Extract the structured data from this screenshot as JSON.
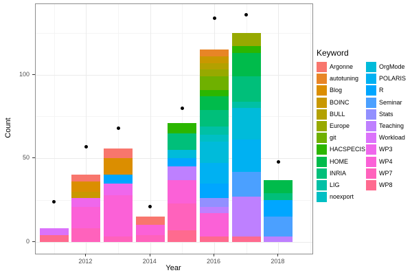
{
  "chart_data": {
    "type": "bar",
    "stacked": true,
    "title": "",
    "xlabel": "Year",
    "ylabel": "Count",
    "legend_title": "Keyword",
    "x": [
      2011,
      2012,
      2013,
      2014,
      2015,
      2016,
      2017,
      2018
    ],
    "x_ticks": [
      2012,
      2014,
      2016,
      2018
    ],
    "x_minor": [
      2011,
      2013,
      2015,
      2017,
      2019
    ],
    "y_ticks": [
      0,
      50,
      100
    ],
    "y_minor": [
      25,
      75,
      125
    ],
    "ylim": [
      -7,
      143
    ],
    "grid": true,
    "legend_position": "right",
    "bar_totals": [
      8,
      40,
      56,
      15,
      71,
      115,
      125,
      37
    ],
    "series": [
      {
        "name": "Argonne",
        "color": "#F8766D",
        "values": [
          0,
          4,
          6,
          5,
          0,
          0,
          0,
          0
        ]
      },
      {
        "name": "autotuning",
        "color": "#E88526",
        "values": [
          0,
          0,
          0,
          0,
          0,
          4,
          0,
          0
        ]
      },
      {
        "name": "Blog",
        "color": "#DB8E00",
        "values": [
          0,
          6,
          10,
          0,
          0,
          0,
          0,
          0
        ]
      },
      {
        "name": "BOINC",
        "color": "#C99800",
        "values": [
          0,
          4,
          0,
          0,
          0,
          4,
          0,
          0
        ]
      },
      {
        "name": "BULL",
        "color": "#B3A100",
        "values": [
          0,
          0,
          0,
          0,
          0,
          4,
          0,
          0
        ]
      },
      {
        "name": "Europe",
        "color": "#97A900",
        "values": [
          0,
          0,
          0,
          0,
          0,
          4,
          8,
          0
        ]
      },
      {
        "name": "git",
        "color": "#6FB000",
        "values": [
          0,
          0,
          0,
          0,
          0,
          8,
          0,
          0
        ]
      },
      {
        "name": "HACSPECIS",
        "color": "#2BB600",
        "values": [
          0,
          0,
          0,
          0,
          6,
          4,
          4,
          0
        ]
      },
      {
        "name": "HOME",
        "color": "#00BB4B",
        "values": [
          0,
          0,
          0,
          0,
          0,
          8,
          14,
          8
        ]
      },
      {
        "name": "INRIA",
        "color": "#00BF7A",
        "values": [
          0,
          0,
          0,
          0,
          10,
          10,
          15,
          4
        ]
      },
      {
        "name": "LIG",
        "color": "#00C0A5",
        "values": [
          0,
          0,
          0,
          0,
          0,
          5,
          4,
          0
        ]
      },
      {
        "name": "noexport",
        "color": "#00BFC4",
        "values": [
          0,
          0,
          0,
          0,
          0,
          4,
          0,
          0
        ]
      },
      {
        "name": "OrgMode",
        "color": "#00BBDA",
        "values": [
          0,
          0,
          0,
          0,
          5,
          13,
          19,
          0
        ]
      },
      {
        "name": "POLARIS",
        "color": "#00B1F2",
        "values": [
          0,
          0,
          0,
          0,
          0,
          12,
          19,
          0
        ]
      },
      {
        "name": "R",
        "color": "#00A6FF",
        "values": [
          0,
          0,
          5,
          0,
          5,
          9,
          0,
          10
        ]
      },
      {
        "name": "Seminar",
        "color": "#4BA0FF",
        "values": [
          0,
          0,
          0,
          0,
          0,
          0,
          15,
          12
        ]
      },
      {
        "name": "Stats",
        "color": "#9290FF",
        "values": [
          0,
          0,
          0,
          0,
          0,
          5,
          0,
          0
        ]
      },
      {
        "name": "Teaching",
        "color": "#BE80FF",
        "values": [
          0,
          0,
          0,
          0,
          8,
          4,
          24,
          3
        ]
      },
      {
        "name": "Workload",
        "color": "#DB72FB",
        "values": [
          4,
          0,
          0,
          0,
          0,
          0,
          0,
          0
        ]
      },
      {
        "name": "WP3",
        "color": "#EF67EC",
        "values": [
          0,
          5,
          7,
          0,
          0,
          0,
          0,
          0
        ]
      },
      {
        "name": "WP4",
        "color": "#FB61D7",
        "values": [
          0,
          13,
          25,
          6,
          14,
          14,
          0,
          0
        ]
      },
      {
        "name": "WP7",
        "color": "#FF62BC",
        "values": [
          0,
          8,
          3,
          4,
          16,
          0,
          0,
          0
        ]
      },
      {
        "name": "WP8",
        "color": "#FF6A8F",
        "values": [
          4,
          0,
          0,
          0,
          7,
          3,
          3,
          0
        ]
      }
    ],
    "points_series": {
      "name": "yearly-dots",
      "color": "#000000",
      "values": [
        24,
        57,
        68,
        21,
        80,
        134,
        136,
        48
      ]
    }
  }
}
